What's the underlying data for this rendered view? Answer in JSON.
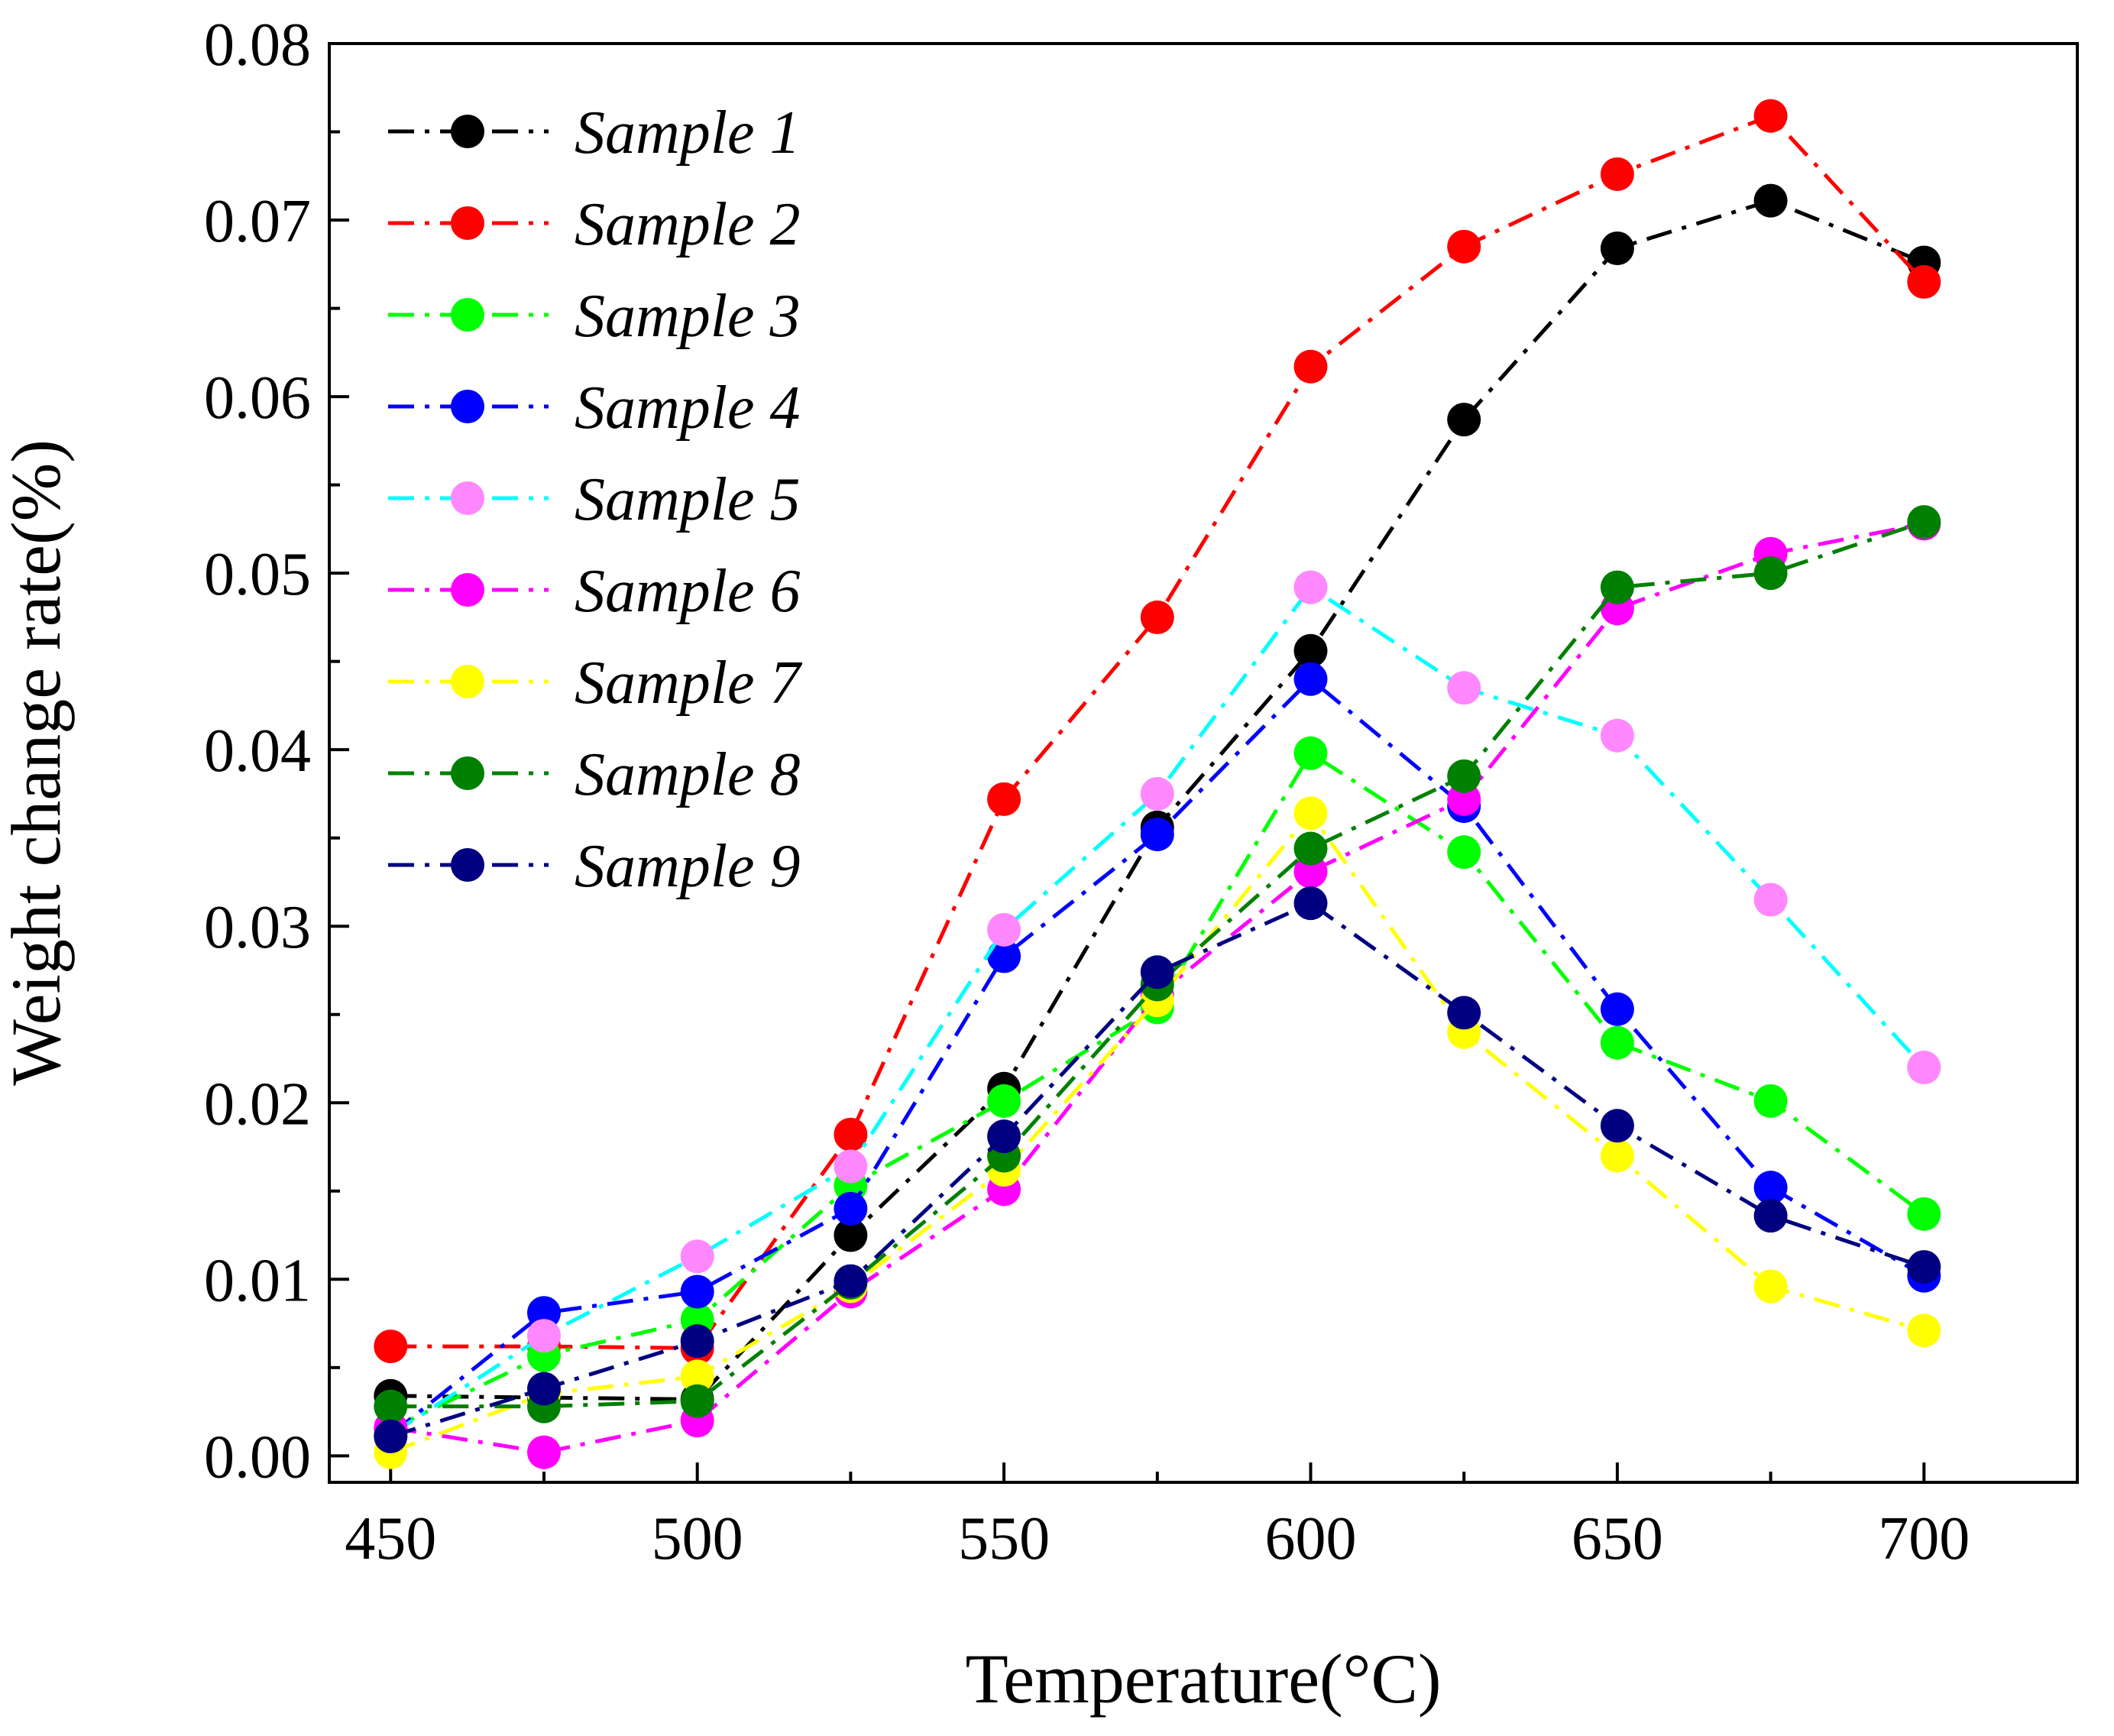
{
  "chart_data": {
    "type": "line",
    "xlabel": "Temperature(°C)",
    "ylabel": "Weight change rate(%)",
    "xlim": [
      440,
      725
    ],
    "ylim": [
      -0.0015,
      0.08
    ],
    "x_ticks": [
      450,
      500,
      550,
      600,
      650,
      700
    ],
    "x_tick_labels": [
      "450",
      "500",
      "550",
      "600",
      "650",
      "700"
    ],
    "y_ticks": [
      0,
      0.01,
      0.02,
      0.03,
      0.04,
      0.05,
      0.06,
      0.07,
      0.08
    ],
    "y_tick_labels": [
      "0.00",
      "0.01",
      "0.02",
      "0.03",
      "0.04",
      "0.05",
      "0.06",
      "0.07",
      "0.08"
    ],
    "grid": false,
    "legend_position": "top-left",
    "x": [
      450,
      475,
      500,
      525,
      550,
      575,
      600,
      625,
      650,
      675,
      700
    ],
    "series": [
      {
        "name": "Sample 1",
        "line_color": "#000000",
        "marker_color": "#000000",
        "values": [
          0.0034,
          0.0033,
          0.0032,
          0.0125,
          0.0208,
          0.0356,
          0.0456,
          0.0587,
          0.0684,
          0.0711,
          0.0676
        ]
      },
      {
        "name": "Sample 2",
        "line_color": "#ff0000",
        "marker_color": "#ff0000",
        "values": [
          0.0062,
          0.0062,
          0.0061,
          0.0182,
          0.0372,
          0.0475,
          0.0617,
          0.0685,
          0.0726,
          0.0759,
          0.0665
        ]
      },
      {
        "name": "Sample 3",
        "line_color": "#00ff00",
        "marker_color": "#00ff00",
        "values": [
          0.0015,
          0.0057,
          0.0077,
          0.0153,
          0.0201,
          0.0254,
          0.0398,
          0.0342,
          0.0234,
          0.0201,
          0.0137
        ]
      },
      {
        "name": "Sample 4",
        "line_color": "#0000ff",
        "marker_color": "#0000ff",
        "values": [
          0.0012,
          0.0081,
          0.0093,
          0.014,
          0.0283,
          0.0352,
          0.044,
          0.0368,
          0.0253,
          0.0152,
          0.0102
        ]
      },
      {
        "name": "Sample 5",
        "line_color": "#00ffff",
        "marker_color": "#ff88ff",
        "values": [
          0.0012,
          0.0068,
          0.0113,
          0.0164,
          0.0298,
          0.0375,
          0.0492,
          0.0435,
          0.0408,
          0.0315,
          0.022
        ]
      },
      {
        "name": "Sample 6",
        "line_color": "#ff00ff",
        "marker_color": "#ff00ff",
        "values": [
          0.0016,
          0.0002,
          0.002,
          0.0093,
          0.0151,
          0.0261,
          0.0331,
          0.0372,
          0.048,
          0.0511,
          0.0528
        ]
      },
      {
        "name": "Sample 7",
        "line_color": "#ffff00",
        "marker_color": "#ffff00",
        "values": [
          0.0002,
          0.0035,
          0.0045,
          0.0096,
          0.0162,
          0.0258,
          0.0364,
          0.024,
          0.017,
          0.0096,
          0.0071
        ]
      },
      {
        "name": "Sample 8",
        "line_color": "#008000",
        "marker_color": "#008000",
        "values": [
          0.0028,
          0.0028,
          0.0031,
          0.0098,
          0.017,
          0.0267,
          0.0344,
          0.0385,
          0.0492,
          0.05,
          0.0529
        ]
      },
      {
        "name": "Sample 9",
        "line_color": "#000080",
        "marker_color": "#000080",
        "values": [
          0.0011,
          0.0038,
          0.0065,
          0.0099,
          0.0181,
          0.0274,
          0.0313,
          0.0251,
          0.0187,
          0.0136,
          0.0107
        ]
      }
    ]
  }
}
